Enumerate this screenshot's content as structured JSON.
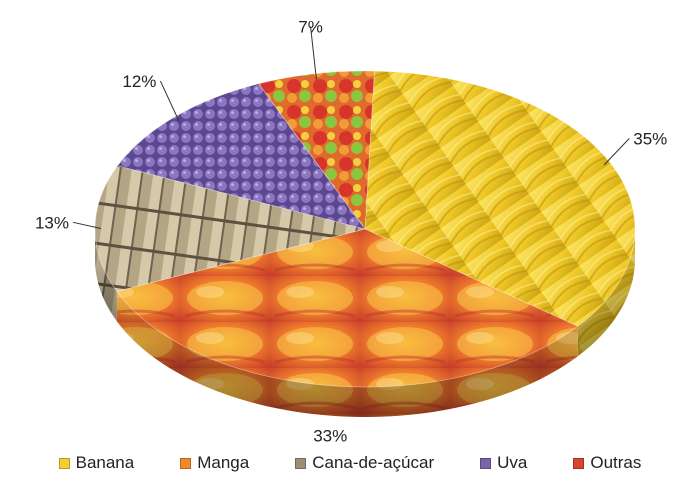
{
  "chart_data": {
    "type": "pie",
    "title": "",
    "categories": [
      "Banana",
      "Manga",
      "Cana-de-açúcar",
      "Uva",
      "Outras"
    ],
    "values": [
      35,
      33,
      13,
      12,
      7
    ],
    "labels": [
      "35%",
      "33%",
      "13%",
      "12%",
      "7%"
    ],
    "colors": [
      "#f2d12e",
      "#f08a2a",
      "#9c8f74",
      "#7a63a8",
      "#d8452d"
    ],
    "legend_position": "bottom",
    "style": "3d-textured"
  }
}
